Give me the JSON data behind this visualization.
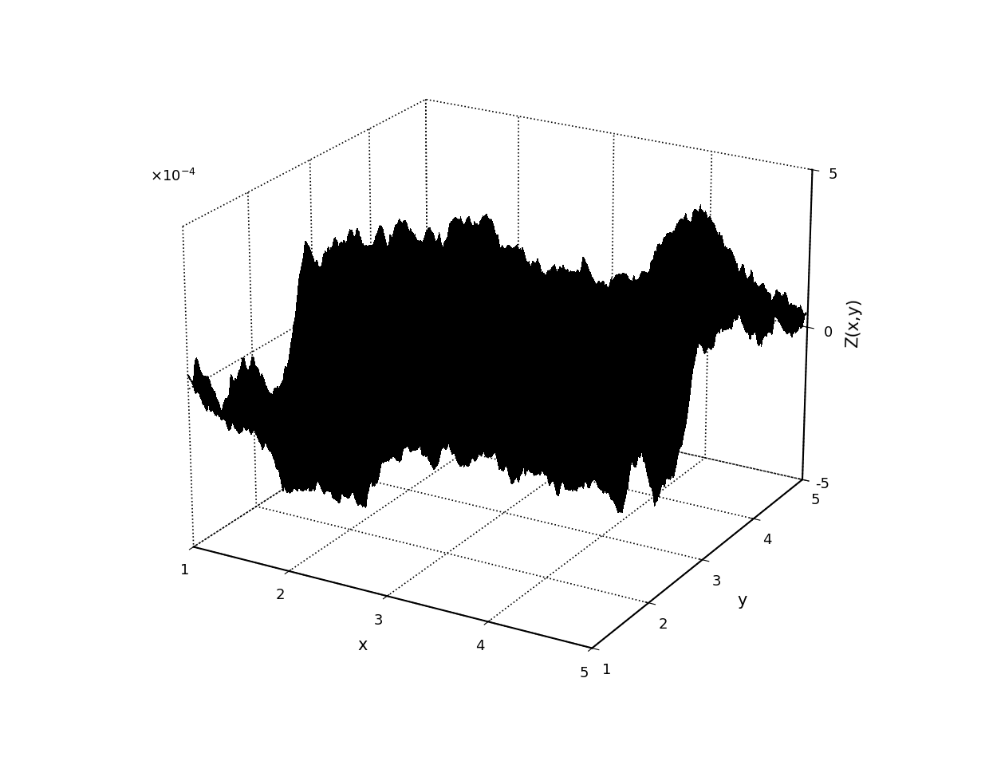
{
  "title": "",
  "xlabel": "x",
  "ylabel": "y",
  "zlabel": "Z(x,y)",
  "xlim": [
    1,
    5
  ],
  "ylim": [
    1,
    5
  ],
  "zlim": [
    -0.0005,
    0.0005
  ],
  "xticks": [
    1,
    2,
    3,
    4,
    5
  ],
  "yticks": [
    1,
    2,
    3,
    4,
    5
  ],
  "zticks": [
    -0.0005,
    0,
    0.0005
  ],
  "ztick_labels": [
    "-5",
    "0",
    "5"
  ],
  "z_sci_label": "x 10^{-4}",
  "surface_color": "#000000",
  "background_color": "#ffffff",
  "grid_style": "dotted",
  "n_points": 512,
  "hurst": 0.75,
  "amplitude": 0.0005,
  "figsize": [
    12.4,
    9.49
  ],
  "dpi": 100,
  "elev": 22,
  "azim": -60
}
